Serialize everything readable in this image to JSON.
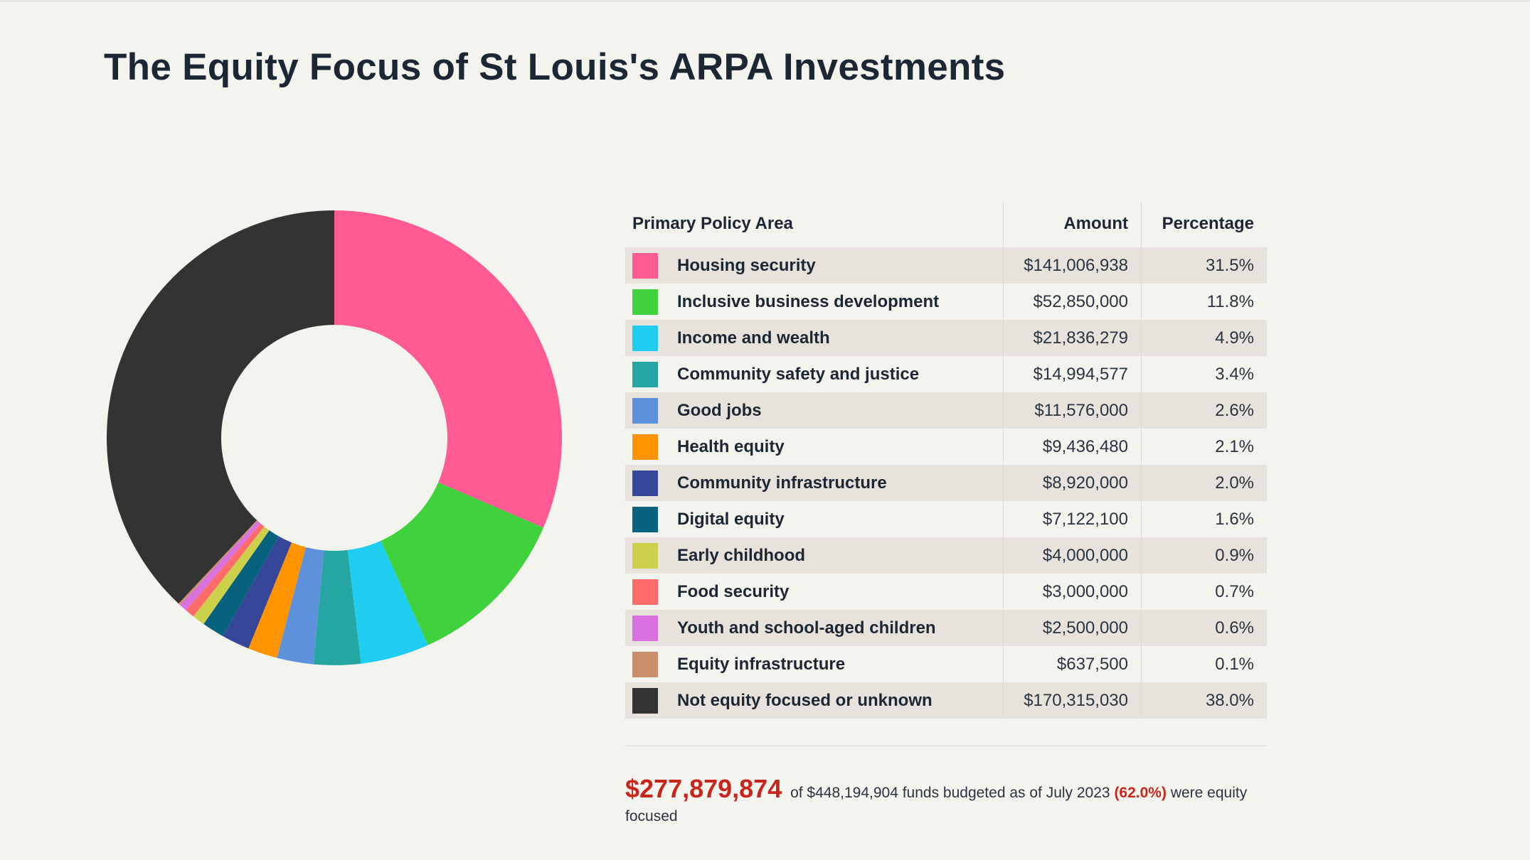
{
  "title": "The Equity Focus of St Louis's ARPA Investments",
  "table": {
    "headers": {
      "area": "Primary Policy Area",
      "amount": "Amount",
      "percentage": "Percentage"
    },
    "rows": [
      {
        "label": "Housing security",
        "amount": "$141,006,938",
        "percent": "31.5%",
        "color": "#ff5a93"
      },
      {
        "label": "Inclusive business development",
        "amount": "$52,850,000",
        "percent": "11.8%",
        "color": "#3fd23c"
      },
      {
        "label": "Income and wealth",
        "amount": "$21,836,279",
        "percent": "4.9%",
        "color": "#1ecdf0"
      },
      {
        "label": "Community safety and justice",
        "amount": "$14,994,577",
        "percent": "3.4%",
        "color": "#26a6a2"
      },
      {
        "label": "Good jobs",
        "amount": "$11,576,000",
        "percent": "2.6%",
        "color": "#5e91db"
      },
      {
        "label": "Health equity",
        "amount": "$9,436,480",
        "percent": "2.1%",
        "color": "#ff9400"
      },
      {
        "label": "Community infrastructure",
        "amount": "$8,920,000",
        "percent": "2.0%",
        "color": "#36479a"
      },
      {
        "label": "Digital equity",
        "amount": "$7,122,100",
        "percent": "1.6%",
        "color": "#07627e"
      },
      {
        "label": "Early childhood",
        "amount": "$4,000,000",
        "percent": "0.9%",
        "color": "#cdd04a"
      },
      {
        "label": "Food security",
        "amount": "$3,000,000",
        "percent": "0.7%",
        "color": "#ff6a6a"
      },
      {
        "label": "Youth and school-aged children",
        "amount": "$2,500,000",
        "percent": "0.6%",
        "color": "#d972df"
      },
      {
        "label": "Equity infrastructure",
        "amount": "$637,500",
        "percent": "0.1%",
        "color": "#c98f6c"
      },
      {
        "label": "Not equity focused or unknown",
        "amount": "$170,315,030",
        "percent": "38.0%",
        "color": "#333333"
      }
    ]
  },
  "summary": {
    "total": "$277,879,874",
    "text_before": "of $448,194,904 funds budgeted as of July 2023",
    "percent": "(62.0%)",
    "text_after": "were equity focused"
  },
  "chart_data": {
    "type": "pie",
    "variant": "donut",
    "title": "The Equity Focus of St Louis's ARPA Investments",
    "categories": [
      "Housing security",
      "Inclusive business development",
      "Income and wealth",
      "Community safety and justice",
      "Good jobs",
      "Health equity",
      "Community infrastructure",
      "Digital equity",
      "Early childhood",
      "Food security",
      "Youth and school-aged children",
      "Equity infrastructure",
      "Not equity focused or unknown"
    ],
    "values": [
      141006938,
      52850000,
      21836279,
      14994577,
      11576000,
      9436480,
      8920000,
      7122100,
      4000000,
      3000000,
      2500000,
      637500,
      170315030
    ],
    "colors": [
      "#ff5a93",
      "#3fd23c",
      "#1ecdf0",
      "#26a6a2",
      "#5e91db",
      "#ff9400",
      "#36479a",
      "#07627e",
      "#cdd04a",
      "#ff6a6a",
      "#d972df",
      "#c98f6c",
      "#333333"
    ],
    "total": 448194904
  }
}
